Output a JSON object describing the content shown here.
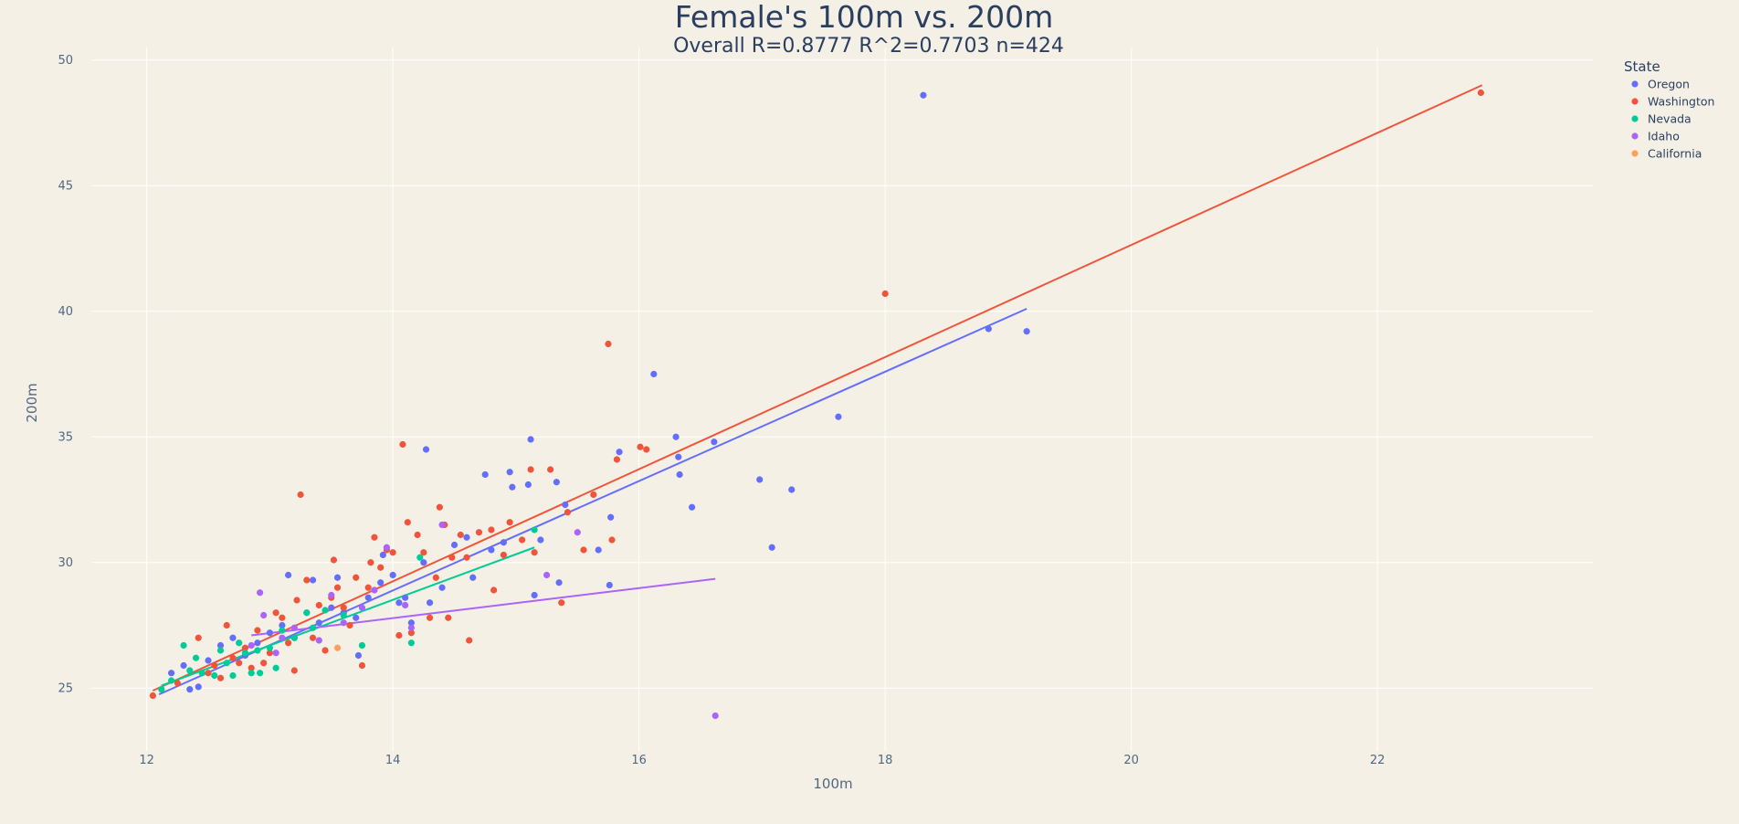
{
  "chart_data": {
    "type": "scatter",
    "title": "Female's 100m vs. 200m",
    "subtitle": "Overall R=0.8777 R^2=0.7703 n=424",
    "xlabel": "100m",
    "ylabel": "200m",
    "xlim": [
      11.55,
      23.75
    ],
    "ylim": [
      22.5,
      50.5
    ],
    "xticks": [
      12,
      14,
      16,
      18,
      20,
      22
    ],
    "yticks": [
      25,
      30,
      35,
      40,
      45,
      50
    ],
    "grid": true,
    "legend": {
      "title": "State",
      "position": "top-right"
    },
    "series": [
      {
        "name": "Oregon",
        "color": "#636efa",
        "points": [
          [
            12.2,
            25.6
          ],
          [
            12.3,
            25.9
          ],
          [
            12.35,
            24.95
          ],
          [
            12.42,
            25.05
          ],
          [
            12.5,
            26.1
          ],
          [
            12.6,
            26.7
          ],
          [
            12.7,
            27.0
          ],
          [
            12.8,
            26.3
          ],
          [
            12.9,
            26.8
          ],
          [
            13.0,
            27.2
          ],
          [
            13.1,
            27.5
          ],
          [
            13.15,
            29.5
          ],
          [
            13.2,
            27.0
          ],
          [
            13.3,
            28.0
          ],
          [
            13.35,
            29.3
          ],
          [
            13.4,
            27.6
          ],
          [
            13.5,
            28.2
          ],
          [
            13.55,
            29.4
          ],
          [
            13.6,
            28.0
          ],
          [
            13.7,
            27.8
          ],
          [
            13.72,
            26.3
          ],
          [
            13.8,
            28.6
          ],
          [
            13.9,
            29.2
          ],
          [
            13.92,
            30.3
          ],
          [
            14.0,
            29.5
          ],
          [
            14.05,
            28.4
          ],
          [
            14.1,
            28.6
          ],
          [
            14.15,
            27.6
          ],
          [
            14.25,
            30.0
          ],
          [
            14.27,
            34.5
          ],
          [
            14.3,
            28.4
          ],
          [
            14.4,
            29.0
          ],
          [
            14.5,
            30.7
          ],
          [
            14.6,
            31.0
          ],
          [
            14.65,
            29.4
          ],
          [
            14.75,
            33.5
          ],
          [
            14.8,
            30.5
          ],
          [
            14.9,
            30.8
          ],
          [
            14.95,
            33.6
          ],
          [
            14.97,
            33.0
          ],
          [
            15.1,
            33.1
          ],
          [
            15.12,
            34.9
          ],
          [
            15.2,
            30.9
          ],
          [
            15.15,
            28.7
          ],
          [
            15.33,
            33.2
          ],
          [
            15.35,
            29.2
          ],
          [
            15.4,
            32.3
          ],
          [
            15.67,
            30.5
          ],
          [
            15.77,
            31.8
          ],
          [
            15.76,
            29.1
          ],
          [
            15.84,
            34.4
          ],
          [
            16.12,
            37.5
          ],
          [
            16.3,
            35.0
          ],
          [
            16.32,
            34.2
          ],
          [
            16.33,
            33.5
          ],
          [
            16.43,
            32.2
          ],
          [
            16.61,
            34.8
          ],
          [
            16.98,
            33.3
          ],
          [
            17.08,
            30.6
          ],
          [
            17.24,
            32.9
          ],
          [
            17.62,
            35.8
          ],
          [
            18.31,
            48.6
          ],
          [
            18.84,
            39.3
          ],
          [
            19.15,
            39.2
          ]
        ],
        "fit": [
          [
            12.1,
            24.75
          ],
          [
            19.15,
            40.1
          ]
        ]
      },
      {
        "name": "Washington",
        "color": "#ef553b",
        "points": [
          [
            12.05,
            24.7
          ],
          [
            12.25,
            25.2
          ],
          [
            12.42,
            27.0
          ],
          [
            12.5,
            25.6
          ],
          [
            12.55,
            25.9
          ],
          [
            12.6,
            25.4
          ],
          [
            12.65,
            27.5
          ],
          [
            12.7,
            26.2
          ],
          [
            12.75,
            26.0
          ],
          [
            12.8,
            26.6
          ],
          [
            12.85,
            25.8
          ],
          [
            12.9,
            27.3
          ],
          [
            12.95,
            26.0
          ],
          [
            13.0,
            26.4
          ],
          [
            13.05,
            28.0
          ],
          [
            13.1,
            27.8
          ],
          [
            13.15,
            26.8
          ],
          [
            13.2,
            25.7
          ],
          [
            13.22,
            28.5
          ],
          [
            13.25,
            32.7
          ],
          [
            13.3,
            29.3
          ],
          [
            13.35,
            27.0
          ],
          [
            13.4,
            28.3
          ],
          [
            13.45,
            26.5
          ],
          [
            13.5,
            28.6
          ],
          [
            13.52,
            30.1
          ],
          [
            13.55,
            29.0
          ],
          [
            13.6,
            28.2
          ],
          [
            13.65,
            27.5
          ],
          [
            13.7,
            29.4
          ],
          [
            13.75,
            25.9
          ],
          [
            13.8,
            29.0
          ],
          [
            13.82,
            30.0
          ],
          [
            13.85,
            31.0
          ],
          [
            13.9,
            29.8
          ],
          [
            13.95,
            30.5
          ],
          [
            14.0,
            30.4
          ],
          [
            14.05,
            27.1
          ],
          [
            14.08,
            34.7
          ],
          [
            14.12,
            31.6
          ],
          [
            14.15,
            27.2
          ],
          [
            14.2,
            31.1
          ],
          [
            14.25,
            30.4
          ],
          [
            14.3,
            27.8
          ],
          [
            14.35,
            29.4
          ],
          [
            14.38,
            32.2
          ],
          [
            14.42,
            31.5
          ],
          [
            14.45,
            27.8
          ],
          [
            14.48,
            30.2
          ],
          [
            14.55,
            31.1
          ],
          [
            14.6,
            30.2
          ],
          [
            14.62,
            26.9
          ],
          [
            14.7,
            31.2
          ],
          [
            14.8,
            31.3
          ],
          [
            14.82,
            28.9
          ],
          [
            14.9,
            30.3
          ],
          [
            14.95,
            31.6
          ],
          [
            15.05,
            30.9
          ],
          [
            15.12,
            33.7
          ],
          [
            15.15,
            30.4
          ],
          [
            15.28,
            33.7
          ],
          [
            15.37,
            28.4
          ],
          [
            15.42,
            32.0
          ],
          [
            15.55,
            30.5
          ],
          [
            15.63,
            32.7
          ],
          [
            15.75,
            38.7
          ],
          [
            15.78,
            30.9
          ],
          [
            15.82,
            34.1
          ],
          [
            16.01,
            34.6
          ],
          [
            16.06,
            34.5
          ],
          [
            18.0,
            40.7
          ],
          [
            22.84,
            48.7
          ]
        ],
        "fit": [
          [
            12.05,
            24.9
          ],
          [
            22.85,
            49.0
          ]
        ]
      },
      {
        "name": "Nevada",
        "color": "#00cc96",
        "points": [
          [
            12.12,
            24.95
          ],
          [
            12.2,
            25.3
          ],
          [
            12.3,
            26.7
          ],
          [
            12.35,
            25.7
          ],
          [
            12.4,
            26.2
          ],
          [
            12.45,
            25.6
          ],
          [
            12.55,
            25.5
          ],
          [
            12.6,
            26.5
          ],
          [
            12.65,
            26.0
          ],
          [
            12.7,
            25.5
          ],
          [
            12.75,
            26.8
          ],
          [
            12.8,
            26.4
          ],
          [
            12.85,
            25.6
          ],
          [
            12.9,
            26.5
          ],
          [
            12.92,
            25.6
          ],
          [
            13.0,
            26.6
          ],
          [
            13.05,
            25.8
          ],
          [
            13.1,
            27.3
          ],
          [
            13.2,
            27.0
          ],
          [
            13.3,
            28.0
          ],
          [
            13.35,
            27.4
          ],
          [
            13.45,
            28.1
          ],
          [
            13.6,
            27.9
          ],
          [
            13.75,
            26.7
          ],
          [
            14.22,
            30.2
          ],
          [
            14.15,
            26.8
          ],
          [
            15.15,
            31.3
          ]
        ],
        "fit": [
          [
            12.12,
            25.1
          ],
          [
            15.15,
            30.6
          ]
        ]
      },
      {
        "name": "Idaho",
        "color": "#ab63fa",
        "points": [
          [
            12.85,
            26.7
          ],
          [
            12.92,
            28.8
          ],
          [
            12.95,
            27.9
          ],
          [
            13.05,
            26.4
          ],
          [
            13.1,
            27.0
          ],
          [
            13.2,
            27.4
          ],
          [
            13.4,
            26.9
          ],
          [
            13.5,
            28.7
          ],
          [
            13.6,
            27.6
          ],
          [
            13.75,
            28.2
          ],
          [
            13.85,
            28.9
          ],
          [
            13.95,
            30.6
          ],
          [
            14.1,
            28.3
          ],
          [
            14.15,
            27.4
          ],
          [
            14.4,
            31.5
          ],
          [
            15.25,
            29.5
          ],
          [
            15.5,
            31.2
          ],
          [
            16.62,
            23.9
          ]
        ],
        "fit": [
          [
            12.85,
            27.1
          ],
          [
            16.62,
            29.35
          ]
        ]
      },
      {
        "name": "California",
        "color": "#ffa15a",
        "points": [
          [
            13.55,
            26.6
          ]
        ],
        "fit": []
      }
    ]
  }
}
